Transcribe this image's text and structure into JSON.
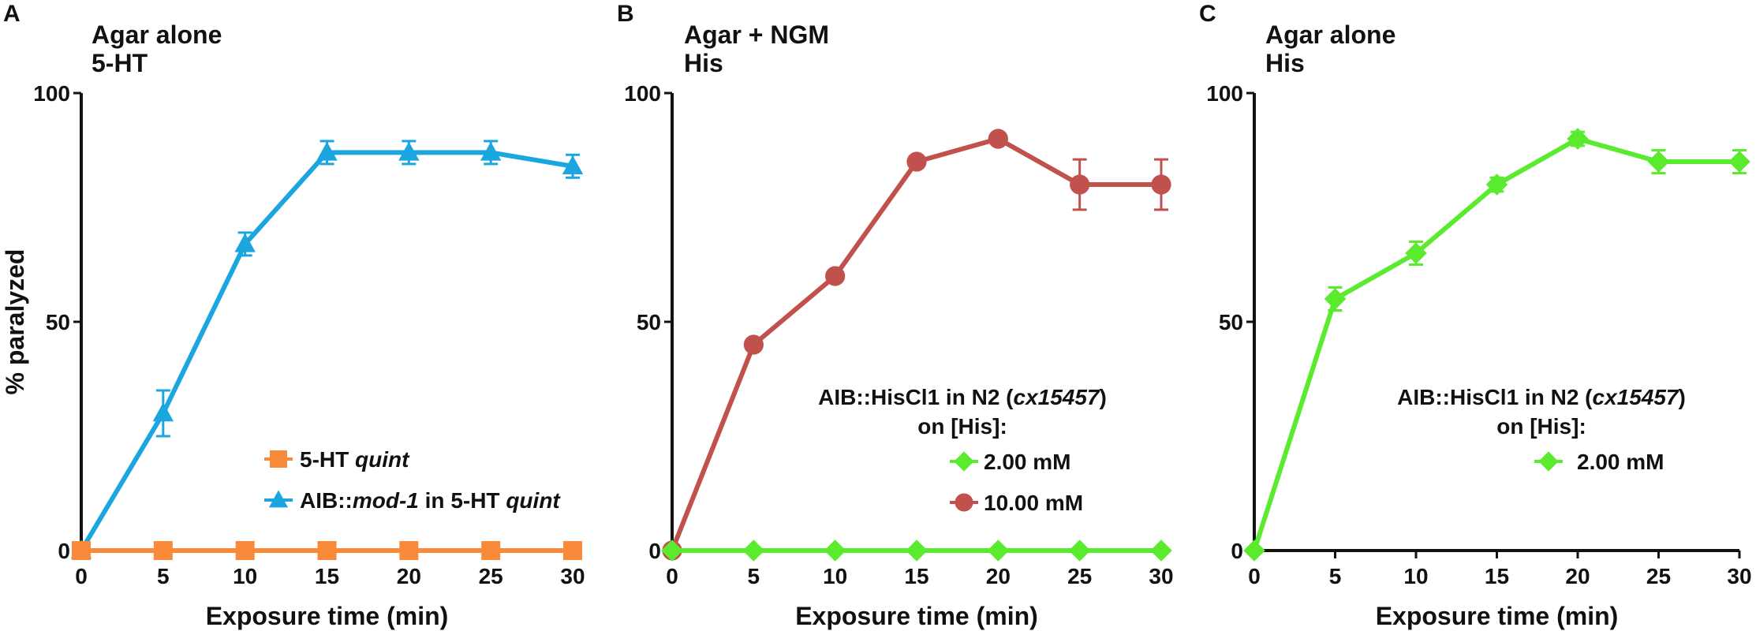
{
  "colors": {
    "blue": "#1BA6E0",
    "orange": "#F98A3A",
    "red": "#C0514D",
    "green": "#5BEB2E",
    "axis": "#111111"
  },
  "chart_data": [
    {
      "panel": "A",
      "type": "line",
      "title": [
        "Agar alone",
        "5-HT"
      ],
      "xlabel": "Exposure time (min)",
      "ylabel": "% paralyzed",
      "x": [
        0,
        5,
        10,
        15,
        20,
        25,
        30
      ],
      "xticks": [
        "0",
        "5",
        "10",
        "15",
        "20",
        "25",
        "30"
      ],
      "yticks": [
        "0",
        "50",
        "100"
      ],
      "xlim": [
        0,
        30
      ],
      "ylim": [
        0,
        100
      ],
      "grid": false,
      "legend_placement": "bottom-right",
      "legend_title": [],
      "series": [
        {
          "name": "5-HT quint",
          "name_parts": [
            {
              "t": "5-HT "
            },
            {
              "t": "quint",
              "i": true
            }
          ],
          "color": "#F98A3A",
          "marker": "square",
          "values": [
            0,
            0,
            0,
            0,
            0,
            0,
            0
          ],
          "err": [
            0,
            0,
            0,
            0,
            0,
            0,
            0
          ]
        },
        {
          "name": "AIB::mod-1 in 5-HT quint",
          "name_parts": [
            {
              "t": "AIB::"
            },
            {
              "t": "mod-1",
              "i": true
            },
            {
              "t": " in 5-HT "
            },
            {
              "t": "quint",
              "i": true
            }
          ],
          "color": "#1BA6E0",
          "marker": "triangle",
          "values": [
            0,
            30,
            67,
            87,
            87,
            87,
            84
          ],
          "err": [
            0,
            5,
            2.5,
            2.5,
            2.5,
            2.5,
            2.5
          ]
        }
      ],
      "draw_order": [
        1,
        0
      ]
    },
    {
      "panel": "B",
      "type": "line",
      "title": [
        "Agar + NGM",
        "His"
      ],
      "xlabel": "Exposure time (min)",
      "ylabel": "",
      "x": [
        0,
        5,
        10,
        15,
        20,
        25,
        30
      ],
      "xticks": [
        "0",
        "5",
        "10",
        "15",
        "20",
        "25",
        "30"
      ],
      "yticks": [
        "0",
        "50",
        "100"
      ],
      "xlim": [
        0,
        30
      ],
      "ylim": [
        0,
        100
      ],
      "grid": false,
      "legend_placement": "center-right",
      "legend_title": [
        [
          {
            "t": "AIB::HisCl1 in N2 ("
          },
          {
            "t": "cx15457",
            "i": true
          },
          {
            "t": ")"
          }
        ],
        [
          {
            "t": "on [His]:"
          }
        ]
      ],
      "series": [
        {
          "name": "2.00 mM",
          "name_parts": [
            {
              "t": "2.00 mM"
            }
          ],
          "color": "#5BEB2E",
          "marker": "diamond",
          "values": [
            0,
            0,
            0,
            0,
            0,
            0,
            0
          ],
          "err": [
            0,
            0,
            0,
            0,
            0,
            0,
            0
          ]
        },
        {
          "name": "10.00 mM",
          "name_parts": [
            {
              "t": "10.00 mM"
            }
          ],
          "color": "#C0514D",
          "marker": "circle",
          "values": [
            0,
            45,
            60,
            85,
            90,
            80,
            80
          ],
          "err": [
            0,
            0,
            0,
            0,
            0,
            5.5,
            5.5
          ]
        }
      ],
      "draw_order": [
        1,
        0
      ]
    },
    {
      "panel": "C",
      "type": "line",
      "title": [
        "Agar alone",
        "His"
      ],
      "xlabel": "Exposure time (min)",
      "ylabel": "",
      "x": [
        0,
        5,
        10,
        15,
        20,
        25,
        30
      ],
      "xticks": [
        "0",
        "5",
        "10",
        "15",
        "20",
        "25",
        "30"
      ],
      "yticks": [
        "0",
        "50",
        "100"
      ],
      "xlim": [
        0,
        30
      ],
      "ylim": [
        0,
        100
      ],
      "grid": false,
      "legend_placement": "center-right",
      "legend_title": [
        [
          {
            "t": "AIB::HisCl1 in N2 ("
          },
          {
            "t": "cx15457",
            "i": true
          },
          {
            "t": ")"
          }
        ],
        [
          {
            "t": "on [His]:"
          }
        ]
      ],
      "series": [
        {
          "name": "2.00 mM",
          "name_parts": [
            {
              "t": "2.00 mM"
            }
          ],
          "color": "#5BEB2E",
          "marker": "diamond",
          "values": [
            0,
            55,
            65,
            80,
            90,
            85,
            85
          ],
          "err": [
            0,
            2.5,
            2.5,
            1.5,
            1.5,
            2.5,
            2.5
          ]
        }
      ],
      "draw_order": [
        0
      ]
    }
  ]
}
